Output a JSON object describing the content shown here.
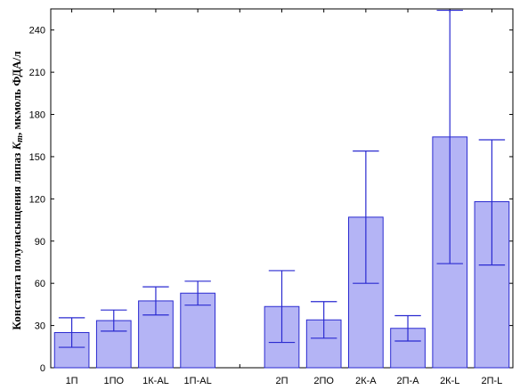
{
  "chart_data": {
    "type": "bar",
    "categories": [
      "1П",
      "1ПО",
      "1К-AL",
      "1П-AL",
      "",
      "2П",
      "2ПО",
      "2К-А",
      "2П-А",
      "2К-L",
      "2П-L"
    ],
    "values": [
      25,
      33.5,
      47.5,
      53,
      null,
      43.5,
      34,
      107,
      28,
      164,
      118
    ],
    "error_low": [
      14.5,
      26,
      37.5,
      44.5,
      null,
      18,
      21,
      60,
      19,
      74,
      73
    ],
    "error_high": [
      35.5,
      41,
      57.5,
      61.5,
      null,
      69,
      47,
      154,
      37,
      254,
      162
    ],
    "ylabel_main": "Константа полунасыщения липаз ",
    "ylabel_symbol": "K",
    "ylabel_sub": "m",
    "ylabel_unit": ", мкмоль ФДА/л",
    "ylim": [
      0,
      255
    ],
    "yticks": [
      0,
      30,
      60,
      90,
      120,
      150,
      180,
      210,
      240
    ],
    "grid": false,
    "colors": {
      "bar_fill": "#b4b4f5",
      "bar_stroke": "#2a2ad0",
      "error": "#2a2ad0",
      "axis": "#000000"
    }
  }
}
